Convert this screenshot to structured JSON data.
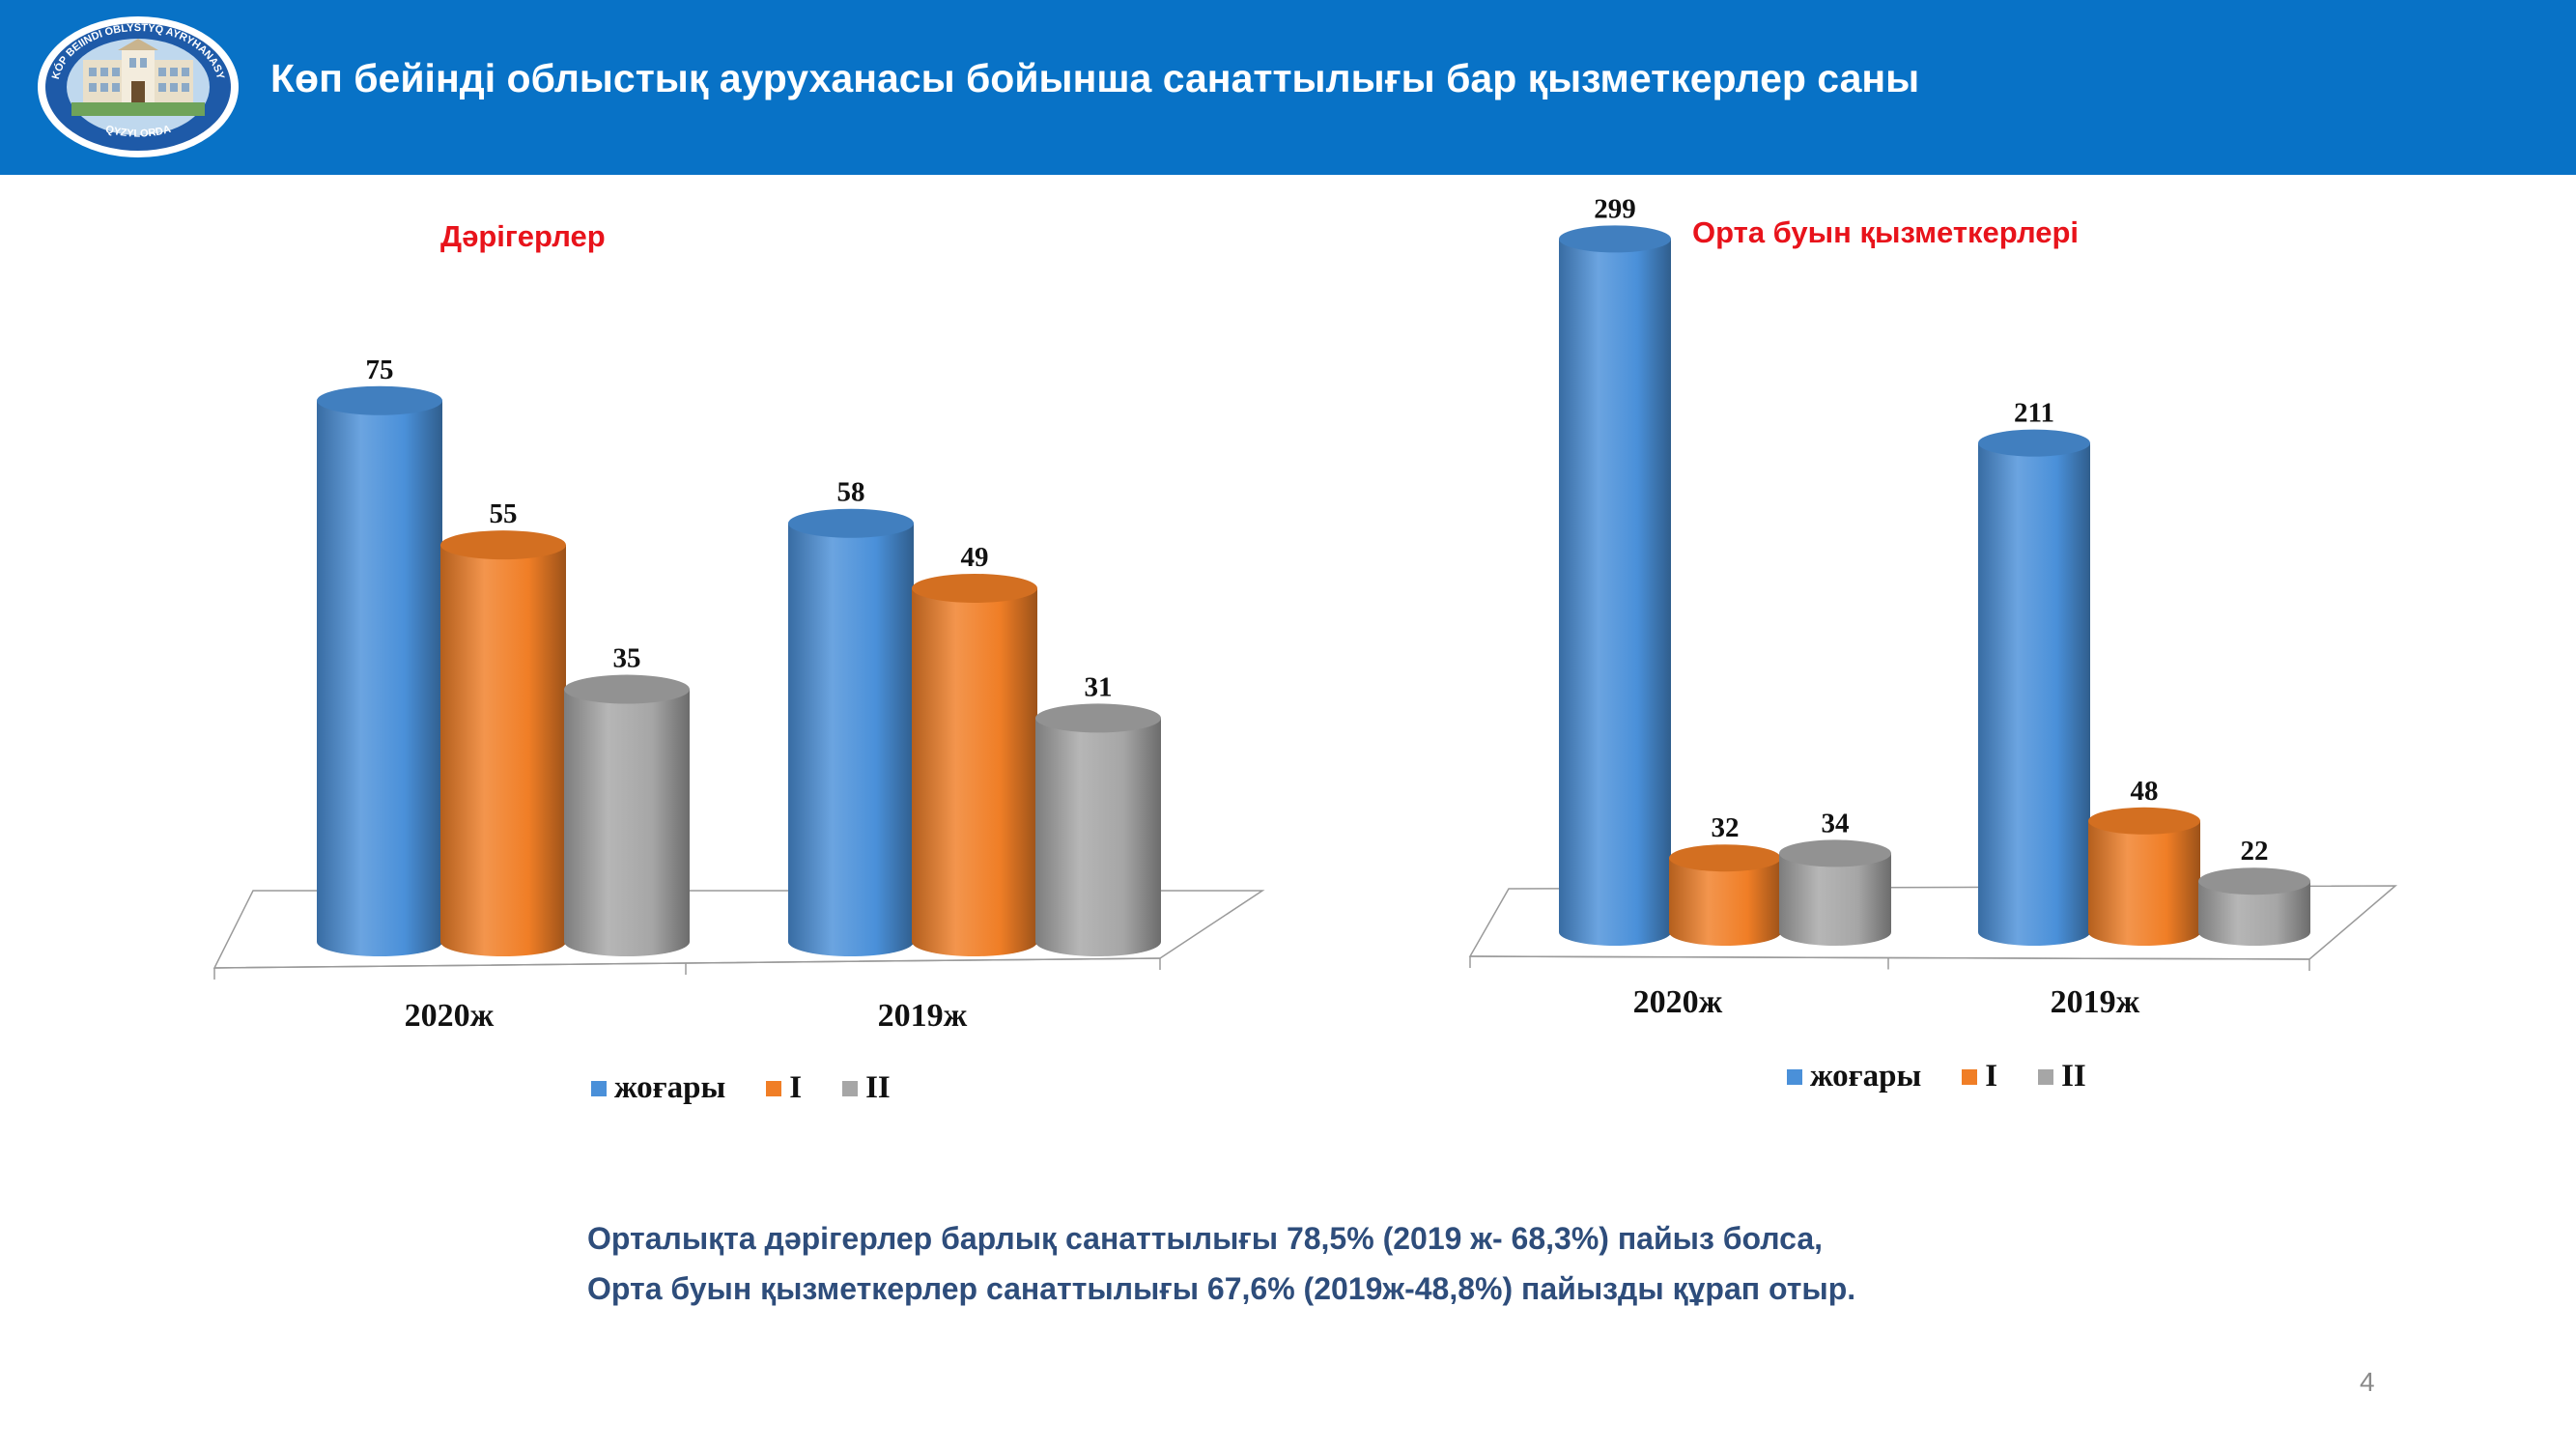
{
  "header": {
    "title": "Көп бейінді облыстық ауруханасы  бойынша санаттылығы бар қызметкерлер саны",
    "logo_text_top": "KÓP BEIINDI OBLYSTYQ AYRYHANASY",
    "logo_text_bottom": "QYZYLORDA"
  },
  "colors": {
    "header_bg": "#0872C6",
    "title_red": "#E8131B",
    "series": [
      "#4A90D9",
      "#F07E26",
      "#A6A6A6"
    ],
    "footnote": "#2E4D7B"
  },
  "chart_data": [
    {
      "type": "bar",
      "style": "3d-cylinder",
      "title": "Дәрігерлер",
      "categories": [
        "2020ж",
        "2019ж"
      ],
      "series": [
        {
          "name": "жоғары",
          "values": [
            75,
            58
          ]
        },
        {
          "name": "I",
          "values": [
            55,
            49
          ]
        },
        {
          "name": "II",
          "values": [
            35,
            31
          ]
        }
      ],
      "value_labels": true,
      "grid": false,
      "legend": "bottom"
    },
    {
      "type": "bar",
      "style": "3d-cylinder",
      "title": "Орта буын қызметкерлері",
      "categories": [
        "2020ж",
        "2019ж"
      ],
      "series": [
        {
          "name": "жоғары",
          "values": [
            299,
            211
          ]
        },
        {
          "name": "I",
          "values": [
            32,
            48
          ]
        },
        {
          "name": "II",
          "values": [
            34,
            22
          ]
        }
      ],
      "value_labels": true,
      "grid": false,
      "legend": "bottom"
    }
  ],
  "footnote": {
    "line1": "Орталықта дәрігерлер барлық санаттылығы  78,5% (2019 ж- 68,3%) пайыз болса,",
    "line2": "Орта буын қызметкерлер санаттылығы  67,6% (2019ж-48,8%) пайызды құрап отыр."
  },
  "page_number": "4"
}
